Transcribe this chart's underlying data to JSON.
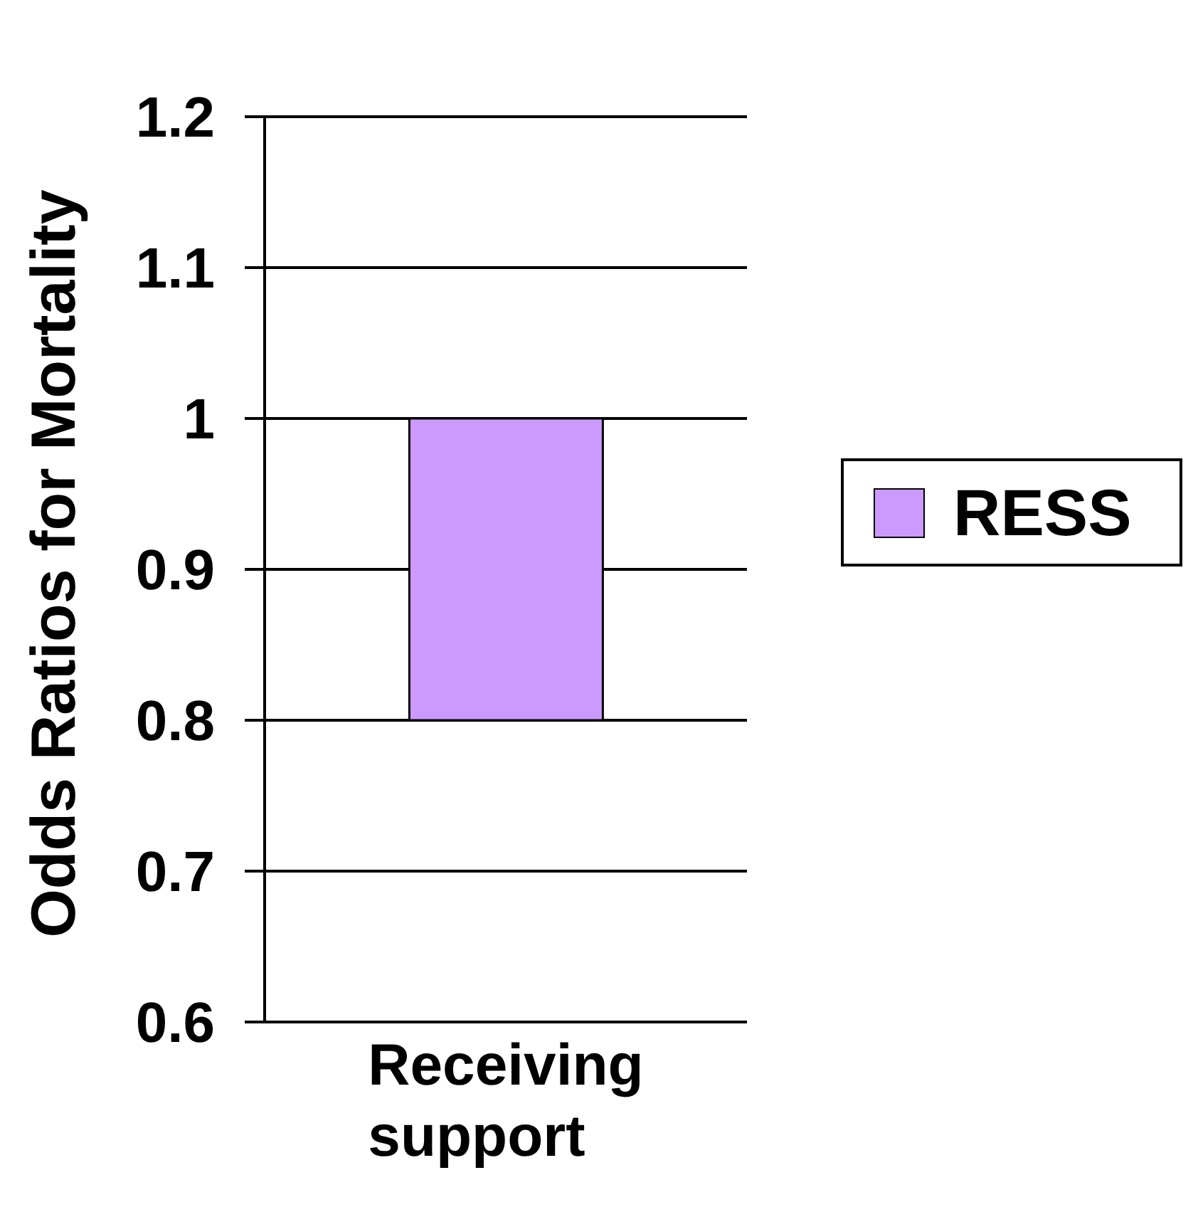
{
  "chart_data": {
    "type": "bar",
    "ylabel": "Odds Ratios for Mortality",
    "categories": [
      "Receiving support"
    ],
    "series": [
      {
        "name": "RESS",
        "color": "#cc99ff",
        "values": [
          0.2
        ],
        "base": [
          0.8
        ]
      }
    ],
    "ylim": [
      0.6,
      1.2
    ],
    "yticks": [
      0.6,
      0.7,
      0.8,
      0.9,
      1,
      1.1,
      1.2
    ],
    "grid": "y",
    "legend": "right"
  }
}
